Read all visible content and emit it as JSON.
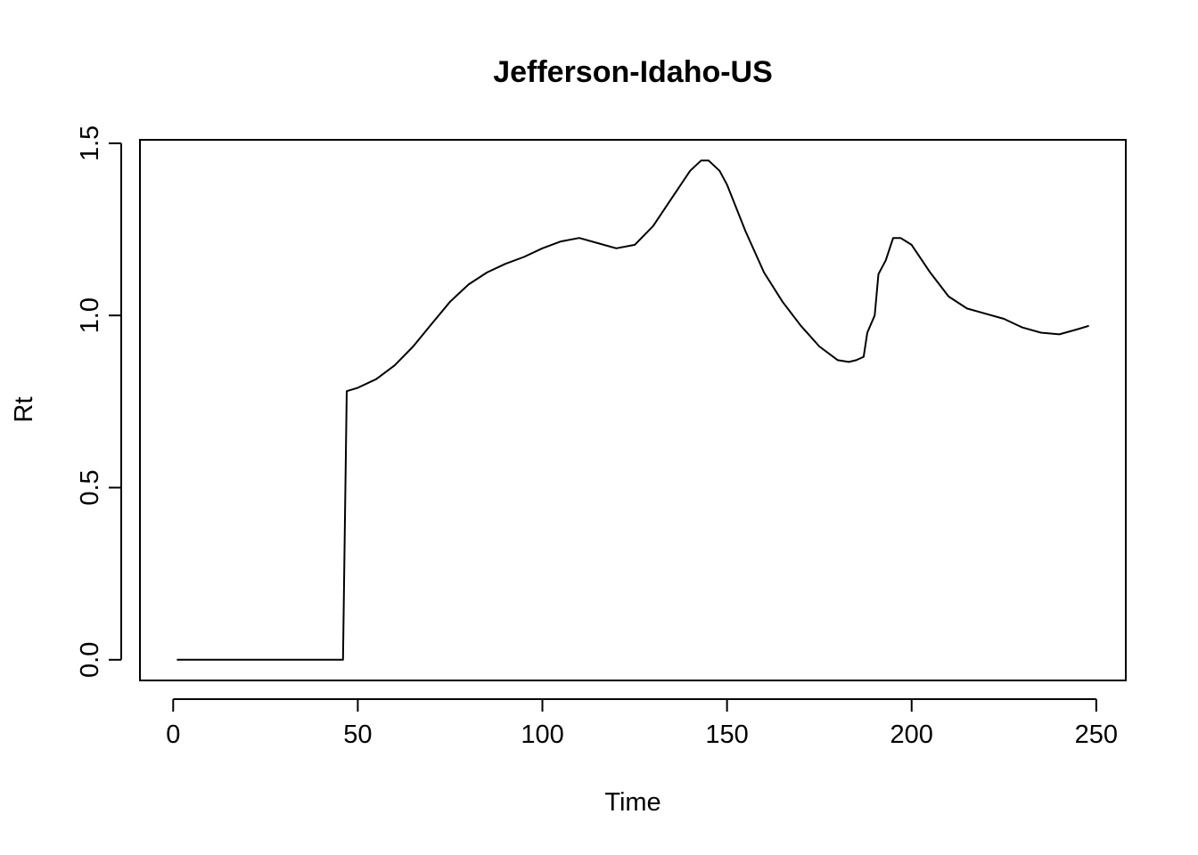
{
  "chart_data": {
    "type": "line",
    "title": "Jefferson-Idaho-US",
    "xlabel": "Time",
    "ylabel": "Rt",
    "xlim": [
      -9,
      258
    ],
    "ylim": [
      -0.06,
      1.51
    ],
    "xticks": [
      0,
      50,
      100,
      150,
      200,
      250
    ],
    "xtick_labels": [
      "0",
      "50",
      "100",
      "150",
      "200",
      "250"
    ],
    "yticks": [
      0.0,
      0.5,
      1.0,
      1.5
    ],
    "ytick_labels": [
      "0.0",
      "0.5",
      "1.0",
      "1.5"
    ],
    "grid": false,
    "legend": "none",
    "line_color": "#000000",
    "series": [
      {
        "x": [
          1,
          10,
          20,
          30,
          40,
          46,
          47,
          50,
          55,
          60,
          65,
          70,
          75,
          80,
          85,
          90,
          95,
          100,
          105,
          110,
          115,
          120,
          125,
          130,
          135,
          140,
          143,
          145,
          148,
          150,
          155,
          160,
          165,
          170,
          175,
          180,
          183,
          185,
          187,
          188,
          190,
          191,
          193,
          195,
          197,
          200,
          205,
          210,
          215,
          220,
          225,
          230,
          235,
          240,
          245,
          248
        ],
        "y": [
          0.0,
          0.0,
          0.0,
          0.0,
          0.0,
          0.0,
          0.78,
          0.79,
          0.815,
          0.855,
          0.91,
          0.975,
          1.04,
          1.09,
          1.125,
          1.15,
          1.17,
          1.195,
          1.215,
          1.225,
          1.21,
          1.195,
          1.205,
          1.26,
          1.34,
          1.42,
          1.45,
          1.45,
          1.42,
          1.38,
          1.245,
          1.125,
          1.04,
          0.97,
          0.91,
          0.87,
          0.865,
          0.87,
          0.88,
          0.95,
          1.0,
          1.12,
          1.16,
          1.225,
          1.225,
          1.205,
          1.125,
          1.055,
          1.02,
          1.005,
          0.99,
          0.965,
          0.95,
          0.945,
          0.96,
          0.97
        ]
      }
    ]
  }
}
